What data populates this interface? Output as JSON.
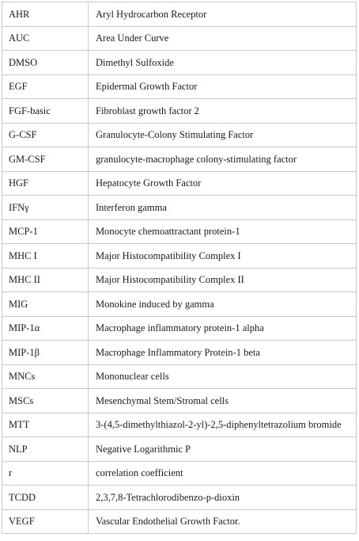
{
  "table": {
    "rows": [
      {
        "abbreviation": "AHR",
        "definition": "Aryl Hydrocarbon Receptor"
      },
      {
        "abbreviation": "AUC",
        "definition": "Area Under Curve"
      },
      {
        "abbreviation": "DMSO",
        "definition": "Dimethyl Sulfoxide"
      },
      {
        "abbreviation": "EGF",
        "definition": "Epidermal Growth Factor"
      },
      {
        "abbreviation": "FGF-basic",
        "definition": "Fibroblast growth factor 2"
      },
      {
        "abbreviation": "G-CSF",
        "definition": "Granulocyte-Colony Stimulating Factor"
      },
      {
        "abbreviation": "GM-CSF",
        "definition": "granulocyte-macrophage colony-stimulating factor"
      },
      {
        "abbreviation": "HGF",
        "definition": "Hepatocyte Growth Factor"
      },
      {
        "abbreviation": "IFNγ",
        "definition": "Interferon gamma"
      },
      {
        "abbreviation": "MCP-1",
        "definition": "Monocyte chemoattractant protein-1"
      },
      {
        "abbreviation": "MHC I",
        "definition": "Major Histocompatibility Complex I"
      },
      {
        "abbreviation": "MHC II",
        "definition": "Major Histocompatibility Complex II"
      },
      {
        "abbreviation": "MIG",
        "definition": "Monokine induced by gamma"
      },
      {
        "abbreviation": "MIP-1α",
        "definition": "Macrophage inflammatory protein-1 alpha"
      },
      {
        "abbreviation": "MIP-1β",
        "definition": "Macrophage Inflammatory Protein-1 beta"
      },
      {
        "abbreviation": "MNCs",
        "definition": "Mononuclear cells"
      },
      {
        "abbreviation": "MSCs",
        "definition": "Mesenchymal Stem/Stromal cells"
      },
      {
        "abbreviation": "MTT",
        "definition": "3-(4,5-dimethylthiazol-2-yl)-2,5-diphenyltetrazolium bromide"
      },
      {
        "abbreviation": "NLP",
        "definition": "Negative Logarithmic P"
      },
      {
        "abbreviation": "r",
        "definition": "correlation coefficient"
      },
      {
        "abbreviation": "TCDD",
        "definition": "2,3,7,8-Tetrachlorodibenzo-p-dioxin"
      },
      {
        "abbreviation": "VEGF",
        "definition": "Vascular Endothelial Growth Factor."
      }
    ]
  }
}
